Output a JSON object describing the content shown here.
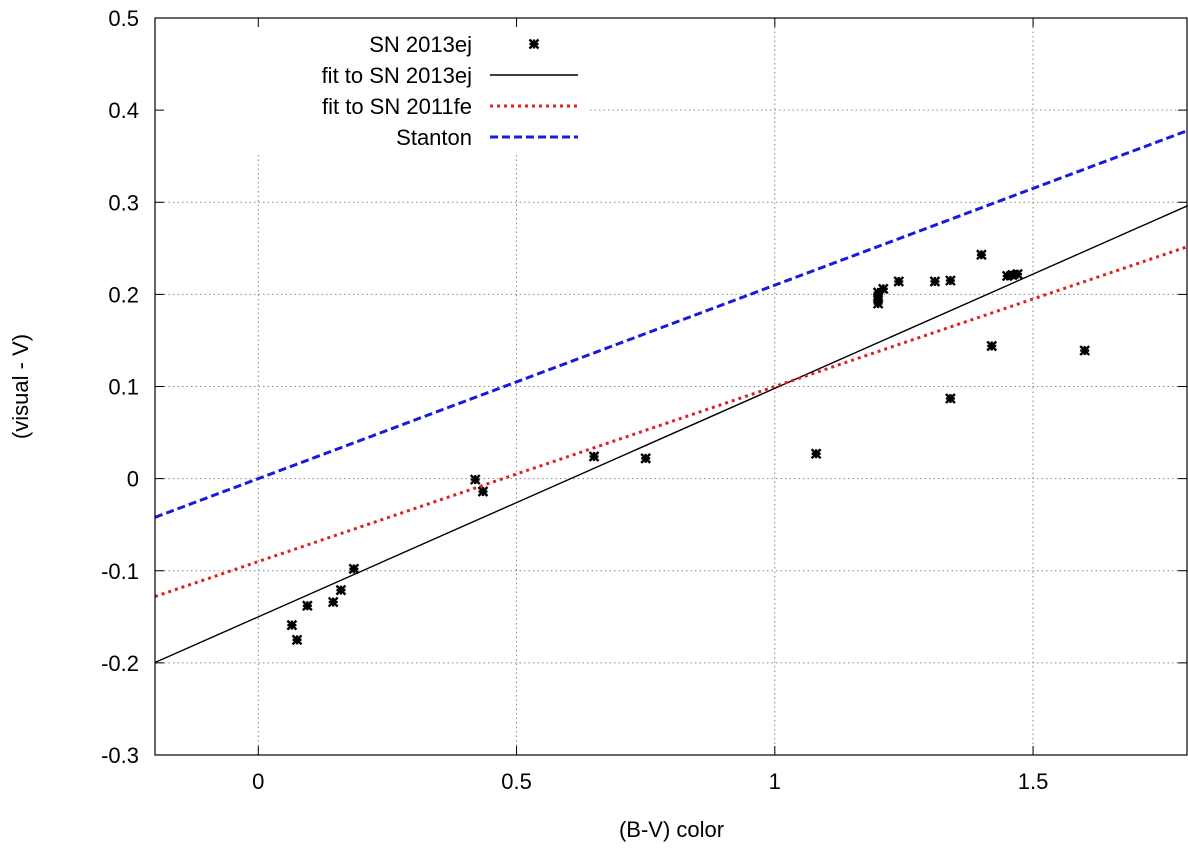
{
  "chart_data": {
    "type": "scatter",
    "title": "",
    "xlabel": "(B-V) color",
    "ylabel": "(visual - V)",
    "xlim": [
      -0.2,
      1.8
    ],
    "ylim": [
      -0.3,
      0.5
    ],
    "xticks": [
      "0",
      "0.5",
      "1",
      "1.5"
    ],
    "xtick_values": [
      0,
      0.5,
      1,
      1.5
    ],
    "yticks": [
      "-0.3",
      "-0.2",
      "-0.1",
      "0",
      "0.1",
      "0.2",
      "0.3",
      "0.4",
      "0.5"
    ],
    "ytick_values": [
      -0.3,
      -0.2,
      -0.1,
      0,
      0.1,
      0.2,
      0.3,
      0.4,
      0.5
    ],
    "grid": true,
    "legend_position": "top-left",
    "series": [
      {
        "name": "SN 2013ej",
        "kind": "points",
        "marker": "star",
        "color": "#000000",
        "points": [
          [
            0.065,
            -0.159
          ],
          [
            0.075,
            -0.175
          ],
          [
            0.095,
            -0.138
          ],
          [
            0.145,
            -0.134
          ],
          [
            0.16,
            -0.121
          ],
          [
            0.185,
            -0.098
          ],
          [
            0.42,
            -0.001
          ],
          [
            0.435,
            -0.014
          ],
          [
            0.65,
            0.024
          ],
          [
            0.75,
            0.022
          ],
          [
            1.08,
            0.027
          ],
          [
            1.2,
            0.19
          ],
          [
            1.2,
            0.196
          ],
          [
            1.2,
            0.202
          ],
          [
            1.21,
            0.206
          ],
          [
            1.24,
            0.214
          ],
          [
            1.31,
            0.214
          ],
          [
            1.34,
            0.215
          ],
          [
            1.34,
            0.087
          ],
          [
            1.4,
            0.243
          ],
          [
            1.42,
            0.144
          ],
          [
            1.45,
            0.22
          ],
          [
            1.46,
            0.221
          ],
          [
            1.47,
            0.222
          ],
          [
            1.6,
            0.139
          ]
        ]
      },
      {
        "name": "fit to SN 2013ej",
        "kind": "line",
        "color": "#000000",
        "dash": "solid",
        "intercept": -0.15,
        "slope": 0.248
      },
      {
        "name": "fit to SN 2011fe",
        "kind": "line",
        "color": "#e02020",
        "dash": "dotted",
        "intercept": -0.09,
        "slope": 0.19
      },
      {
        "name": "Stanton",
        "kind": "line",
        "color": "#1a1adc",
        "dash": "dashed",
        "intercept": 0.0,
        "slope": 0.21
      }
    ]
  }
}
